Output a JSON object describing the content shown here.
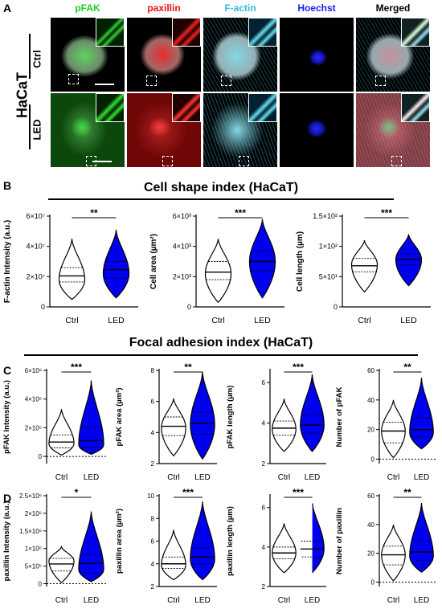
{
  "panelA": {
    "letter": "A",
    "cell_line": "HaCaT",
    "rows": [
      "Ctrl",
      "LED"
    ],
    "channels": [
      {
        "name": "pFAK",
        "color": "#22cc22"
      },
      {
        "name": "paxillin",
        "color": "#ee1111"
      },
      {
        "name": "F-actin",
        "color": "#33bbdd"
      },
      {
        "name": "Hoechst",
        "color": "#1a1aee"
      },
      {
        "name": "Merged",
        "color": "#000000"
      }
    ]
  },
  "panelB": {
    "letter": "B",
    "title": "Cell shape index (HaCaT)",
    "charts": [
      {
        "type": "violin",
        "ylabel": "F-actin Intensity (a.u.)",
        "ticks": [
          {
            "v": 0,
            "t": "0"
          },
          {
            "v": 20000000,
            "t": "2×10⁷"
          },
          {
            "v": 40000000,
            "t": "4×10⁷"
          },
          {
            "v": 60000000,
            "t": "6×10⁷"
          }
        ],
        "ylim": [
          0,
          60000000
        ],
        "categories": [
          "Ctrl",
          "LED"
        ],
        "sig": "**",
        "groups": [
          {
            "name": "Ctrl",
            "median": 20500000,
            "q1": 16500000,
            "q3": 26000000,
            "min": 5000000,
            "max": 45000000,
            "peak": 18000000,
            "fill": "#ffffff"
          },
          {
            "name": "LED",
            "median": 24500000,
            "q1": 19000000,
            "q3": 30000000,
            "min": 6000000,
            "max": 51000000,
            "peak": 22000000,
            "fill": "#0000ee"
          }
        ]
      },
      {
        "type": "violin",
        "ylabel": "Cell area (µm²)",
        "ticks": [
          {
            "v": 0,
            "t": "0"
          },
          {
            "v": 2000,
            "t": "2×10³"
          },
          {
            "v": 4000,
            "t": "4×10³"
          },
          {
            "v": 6000,
            "t": "6×10³"
          }
        ],
        "ylim": [
          0,
          6000
        ],
        "categories": [
          "Ctrl",
          "LED"
        ],
        "sig": "***",
        "groups": [
          {
            "name": "Ctrl",
            "median": 2300,
            "q1": 1800,
            "q3": 3000,
            "min": 300,
            "max": 4500,
            "peak": 2200,
            "fill": "#ffffff"
          },
          {
            "name": "LED",
            "median": 3000,
            "q1": 2400,
            "q3": 3700,
            "min": 600,
            "max": 5800,
            "peak": 3000,
            "fill": "#0000ee"
          }
        ]
      },
      {
        "type": "violin",
        "ylabel": "Cell length (µm)",
        "ticks": [
          {
            "v": 0,
            "t": "0"
          },
          {
            "v": 50,
            "t": "5×10¹"
          },
          {
            "v": 100,
            "t": "1×10²"
          },
          {
            "v": 150,
            "t": "1.5×10²"
          }
        ],
        "ylim": [
          0,
          150
        ],
        "categories": [
          "Ctrl",
          "LED"
        ],
        "sig": "***",
        "groups": [
          {
            "name": "Ctrl",
            "median": 68,
            "q1": 58,
            "q3": 80,
            "min": 25,
            "max": 110,
            "peak": 70,
            "fill": "#ffffff"
          },
          {
            "name": "LED",
            "median": 78,
            "q1": 70,
            "q3": 88,
            "min": 35,
            "max": 120,
            "peak": 78,
            "fill": "#0000ee"
          }
        ]
      }
    ]
  },
  "panelC": {
    "letter": "C",
    "title": "Focal adhesion index (HaCaT)",
    "charts": [
      {
        "type": "violin",
        "ylabel": "pFAK Intensity (a.u.)",
        "ticks": [
          {
            "v": 0,
            "t": "0"
          },
          {
            "v": 2000000,
            "t": "2×10⁶"
          },
          {
            "v": 4000000,
            "t": "4×10⁶"
          },
          {
            "v": 6000000,
            "t": "6×10⁶"
          }
        ],
        "ylim": [
          -500000,
          6000000
        ],
        "zero_dotted": true,
        "categories": [
          "Ctrl",
          "LED"
        ],
        "sig": "***",
        "groups": [
          {
            "name": "Ctrl",
            "median": 1000000,
            "q1": 600000,
            "q3": 1500000,
            "min": 100000,
            "max": 3300000,
            "peak": 900000,
            "fill": "#ffffff"
          },
          {
            "name": "LED",
            "median": 1100000,
            "q1": 600000,
            "q3": 2000000,
            "min": 150000,
            "max": 5300000,
            "peak": 800000,
            "fill": "#0000ee"
          }
        ]
      },
      {
        "type": "violin",
        "ylabel": "pFAK area (µm²)",
        "ticks": [
          {
            "v": 2,
            "t": "2"
          },
          {
            "v": 4,
            "t": "4"
          },
          {
            "v": 6,
            "t": "6"
          },
          {
            "v": 8,
            "t": "8"
          }
        ],
        "ylim": [
          2,
          8
        ],
        "categories": [
          "Ctrl",
          "LED"
        ],
        "sig": "**",
        "groups": [
          {
            "name": "Ctrl",
            "median": 4.4,
            "q1": 3.8,
            "q3": 5.0,
            "min": 2.5,
            "max": 6.2,
            "peak": 4.3,
            "fill": "#ffffff"
          },
          {
            "name": "LED",
            "median": 4.6,
            "q1": 3.9,
            "q3": 5.3,
            "min": 2.3,
            "max": 7.9,
            "peak": 4.5,
            "fill": "#0000ee"
          }
        ]
      },
      {
        "type": "violin",
        "ylabel": "pFAK length (µm)",
        "ticks": [
          {
            "v": 2,
            "t": "2"
          },
          {
            "v": 4,
            "t": "4"
          },
          {
            "v": 6,
            "t": "6"
          }
        ],
        "ylim": [
          2,
          6.6
        ],
        "categories": [
          "Ctrl",
          "LED"
        ],
        "sig": "***",
        "groups": [
          {
            "name": "Ctrl",
            "median": 3.75,
            "q1": 3.4,
            "q3": 4.1,
            "min": 2.6,
            "max": 5.2,
            "peak": 3.7,
            "fill": "#ffffff"
          },
          {
            "name": "LED",
            "median": 3.9,
            "q1": 3.5,
            "q3": 4.4,
            "min": 2.6,
            "max": 6.4,
            "peak": 3.9,
            "fill": "#0000ee"
          }
        ]
      },
      {
        "type": "violin",
        "ylabel": "Number of pFAK",
        "ticks": [
          {
            "v": 0,
            "t": "0"
          },
          {
            "v": 20,
            "t": "20"
          },
          {
            "v": 40,
            "t": "40"
          },
          {
            "v": 60,
            "t": "60"
          }
        ],
        "ylim": [
          -3,
          60
        ],
        "zero_dotted": true,
        "categories": [
          "Ctrl",
          "LED"
        ],
        "sig": "**",
        "groups": [
          {
            "name": "Ctrl",
            "median": 19,
            "q1": 11,
            "q3": 25,
            "min": 1,
            "max": 40,
            "peak": 19,
            "fill": "#ffffff"
          },
          {
            "name": "LED",
            "median": 20,
            "q1": 15,
            "q3": 28,
            "min": 7,
            "max": 55,
            "peak": 18,
            "fill": "#0000ee"
          }
        ]
      }
    ]
  },
  "panelD": {
    "letter": "D",
    "charts": [
      {
        "type": "violin",
        "ylabel": "paxillin Intensity (a.u.)",
        "ticks": [
          {
            "v": 0,
            "t": "0"
          },
          {
            "v": 500000,
            "t": "5×10⁵"
          },
          {
            "v": 1000000,
            "t": "1×10⁶"
          },
          {
            "v": 1500000,
            "t": "1.5×10⁶"
          },
          {
            "v": 2000000,
            "t": "2×10⁶"
          },
          {
            "v": 2500000,
            "t": "2.5×10⁶"
          }
        ],
        "ylim": [
          -80000,
          2500000
        ],
        "zero_dotted": true,
        "categories": [
          "Ctrl",
          "LED"
        ],
        "sig": "*",
        "groups": [
          {
            "name": "Ctrl",
            "median": 560000,
            "q1": 360000,
            "q3": 720000,
            "min": 30000,
            "max": 1050000,
            "peak": 650000,
            "fill": "#ffffff"
          },
          {
            "name": "LED",
            "median": 580000,
            "q1": 310000,
            "q3": 830000,
            "min": 60000,
            "max": 2050000,
            "peak": 400000,
            "fill": "#0000ee"
          }
        ]
      },
      {
        "type": "violin",
        "ylabel": "paxillin area (µm²)",
        "ticks": [
          {
            "v": 2,
            "t": "2"
          },
          {
            "v": 4,
            "t": "4"
          },
          {
            "v": 6,
            "t": "6"
          },
          {
            "v": 8,
            "t": "8"
          },
          {
            "v": 10,
            "t": "10"
          }
        ],
        "ylim": [
          2,
          10
        ],
        "categories": [
          "Ctrl",
          "LED"
        ],
        "sig": "***",
        "groups": [
          {
            "name": "Ctrl",
            "median": 4.0,
            "q1": 3.6,
            "q3": 4.6,
            "min": 2.6,
            "max": 7.0,
            "peak": 3.9,
            "fill": "#ffffff"
          },
          {
            "name": "LED",
            "median": 4.6,
            "q1": 4.0,
            "q3": 5.4,
            "min": 2.6,
            "max": 9.5,
            "peak": 4.4,
            "fill": "#0000ee"
          }
        ]
      },
      {
        "type": "violin",
        "ylabel": "paxillin length (µm)",
        "ticks": [
          {
            "v": 2,
            "t": "2"
          },
          {
            "v": 4,
            "t": "4"
          },
          {
            "v": 6,
            "t": "6"
          }
        ],
        "ylim": [
          2,
          6.6
        ],
        "categories": [
          "Ctrl",
          "LED"
        ],
        "sig": "***",
        "groups": [
          {
            "name": "Ctrl",
            "median": 3.7,
            "q1": 3.4,
            "q3": 4.0,
            "min": 2.7,
            "max": 5.2,
            "peak": 3.7,
            "fill": "#ffffff"
          },
          {
            "name": "LED",
            "median": 3.9,
            "q1": 3.5,
            "q3": 4.3,
            "min": 2.7,
            "max": 6.3,
            "peak": 3.9,
            "fill": "#0000ee"
          }
        ]
      },
      {
        "type": "violin",
        "ylabel": "Number of paxillin",
        "ticks": [
          {
            "v": 0,
            "t": "0"
          },
          {
            "v": 20,
            "t": "20"
          },
          {
            "v": 40,
            "t": "40"
          },
          {
            "v": 60,
            "t": "60"
          }
        ],
        "ylim": [
          -3,
          60
        ],
        "zero_dotted": true,
        "categories": [
          "Ctrl",
          "LED"
        ],
        "sig": "**",
        "groups": [
          {
            "name": "Ctrl",
            "median": 19,
            "q1": 12,
            "q3": 25,
            "min": 1,
            "max": 40,
            "peak": 19,
            "fill": "#ffffff"
          },
          {
            "name": "LED",
            "median": 21,
            "q1": 15,
            "q3": 29,
            "min": 7,
            "max": 55,
            "peak": 18,
            "fill": "#0000ee"
          }
        ]
      }
    ]
  },
  "chart_data": [
    {
      "type": "violin",
      "ylabel": "F-actin Intensity (a.u.)",
      "categories": [
        "Ctrl",
        "LED"
      ],
      "medians": [
        20500000,
        24500000
      ],
      "ylim": [
        0,
        60000000
      ],
      "significance": "**"
    },
    {
      "type": "violin",
      "ylabel": "Cell area (µm²)",
      "categories": [
        "Ctrl",
        "LED"
      ],
      "medians": [
        2300,
        3000
      ],
      "ylim": [
        0,
        6000
      ],
      "significance": "***"
    },
    {
      "type": "violin",
      "ylabel": "Cell length (µm)",
      "categories": [
        "Ctrl",
        "LED"
      ],
      "medians": [
        68,
        78
      ],
      "ylim": [
        0,
        150
      ],
      "significance": "***"
    },
    {
      "type": "violin",
      "ylabel": "pFAK Intensity (a.u.)",
      "categories": [
        "Ctrl",
        "LED"
      ],
      "medians": [
        1000000,
        1100000
      ],
      "ylim": [
        0,
        6000000
      ],
      "significance": "***"
    },
    {
      "type": "violin",
      "ylabel": "pFAK area (µm²)",
      "categories": [
        "Ctrl",
        "LED"
      ],
      "medians": [
        4.4,
        4.6
      ],
      "ylim": [
        2,
        8
      ],
      "significance": "**"
    },
    {
      "type": "violin",
      "ylabel": "pFAK length (µm)",
      "categories": [
        "Ctrl",
        "LED"
      ],
      "medians": [
        3.75,
        3.9
      ],
      "ylim": [
        2,
        6.6
      ],
      "significance": "***"
    },
    {
      "type": "violin",
      "ylabel": "Number of pFAK",
      "categories": [
        "Ctrl",
        "LED"
      ],
      "medians": [
        19,
        20
      ],
      "ylim": [
        0,
        60
      ],
      "significance": "**"
    },
    {
      "type": "violin",
      "ylabel": "paxillin Intensity (a.u.)",
      "categories": [
        "Ctrl",
        "LED"
      ],
      "medians": [
        560000,
        580000
      ],
      "ylim": [
        0,
        2500000
      ],
      "significance": "*"
    },
    {
      "type": "violin",
      "ylabel": "paxillin area (µm²)",
      "categories": [
        "Ctrl",
        "LED"
      ],
      "medians": [
        4.0,
        4.6
      ],
      "ylim": [
        2,
        10
      ],
      "significance": "***"
    },
    {
      "type": "violin",
      "ylabel": "paxillin length (µm)",
      "categories": [
        "Ctrl",
        "LED"
      ],
      "medians": [
        3.7,
        3.9
      ],
      "ylim": [
        2,
        6.6
      ],
      "significance": "***"
    },
    {
      "type": "violin",
      "ylabel": "Number of paxillin",
      "categories": [
        "Ctrl",
        "LED"
      ],
      "medians": [
        19,
        21
      ],
      "ylim": [
        0,
        60
      ],
      "significance": "**"
    }
  ]
}
